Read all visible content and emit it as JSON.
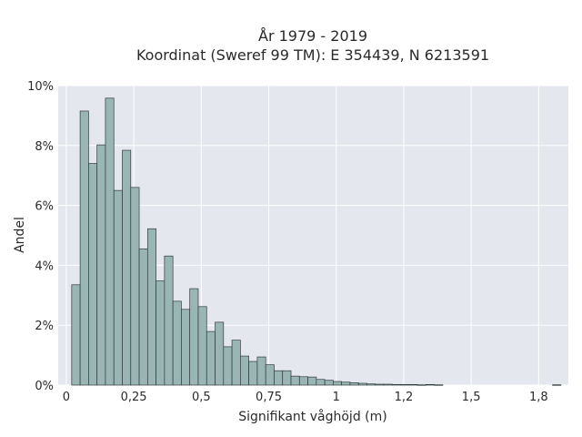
{
  "chart_data": {
    "type": "bar",
    "title_line1": "År 1979 - 2019",
    "title_line2": "Koordinat (Sweref 99 TM): E 354439, N 6213591",
    "xlabel": "Signifikant våghöjd (m)",
    "ylabel": "Andel",
    "xlim": [
      -0.03,
      1.86
    ],
    "ylim": [
      0,
      10
    ],
    "x_ticks": [
      0,
      0.25,
      0.5,
      0.75,
      1,
      1.25,
      1.5,
      1.75
    ],
    "x_tick_labels": [
      "0",
      "0,25",
      "0,5",
      "0,75",
      "1",
      "1,2",
      "1,5",
      "1,8"
    ],
    "y_ticks": [
      0,
      2,
      4,
      6,
      8,
      10
    ],
    "y_tick_labels": [
      "0%",
      "2%",
      "4%",
      "6%",
      "8%",
      "10%"
    ],
    "bin_start": 0.02,
    "bin_width": 0.03125,
    "values": [
      3.35,
      9.15,
      7.4,
      8.02,
      9.58,
      6.5,
      7.84,
      6.6,
      4.55,
      5.22,
      3.48,
      4.31,
      2.8,
      2.53,
      3.22,
      2.62,
      1.79,
      2.1,
      1.28,
      1.5,
      0.97,
      0.79,
      0.94,
      0.68,
      0.48,
      0.48,
      0.3,
      0.28,
      0.27,
      0.19,
      0.16,
      0.12,
      0.1,
      0.08,
      0.06,
      0.04,
      0.03,
      0.03,
      0.02,
      0.02,
      0.02,
      0.01,
      0.02,
      0.01,
      0.0,
      0.0,
      0.0,
      0.0,
      0.0,
      0.0,
      0.0,
      0.0,
      0.0,
      0.0,
      0.0,
      0.0,
      0.0,
      0.01
    ],
    "grid": true,
    "colors": {
      "plot_bg": "#e5e7ef",
      "grid": "#ffffff",
      "bar_fill": "#9ab6b4",
      "bar_stroke": "#2f3b3a"
    }
  }
}
